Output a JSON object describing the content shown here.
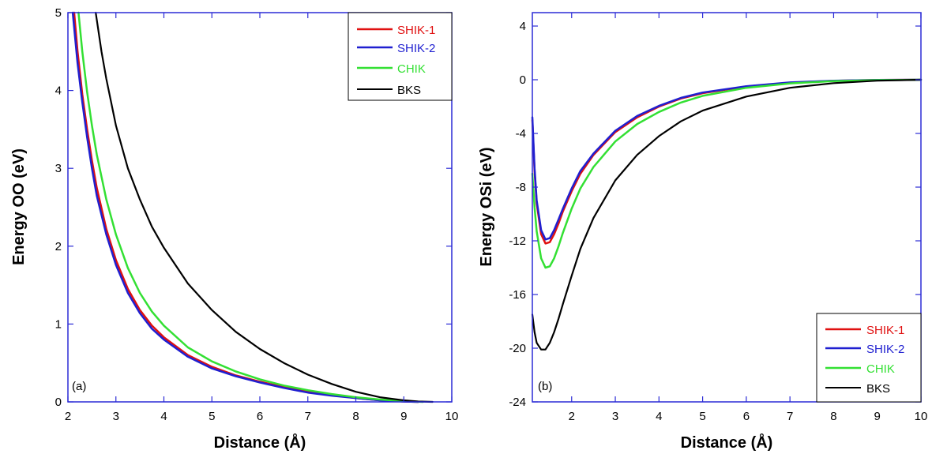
{
  "chart_data": [
    {
      "type": "line",
      "panel_label": "(a)",
      "xlabel": "Distance (Å)",
      "ylabel": "Energy OO (eV)",
      "xlim": [
        2,
        10
      ],
      "ylim": [
        0,
        5
      ],
      "xticks": [
        "2",
        "3",
        "4",
        "5",
        "6",
        "7",
        "8",
        "9",
        "10"
      ],
      "yticks": [
        "0",
        "1",
        "2",
        "3",
        "4",
        "5"
      ],
      "legend_position": "top-right",
      "legend": [
        "SHIK-1",
        "SHIK-2",
        "CHIK",
        "BKS"
      ],
      "series": [
        {
          "name": "SHIK-1",
          "color": "#e01010",
          "x": [
            2.13,
            2.2,
            2.3,
            2.4,
            2.5,
            2.6,
            2.8,
            3.0,
            3.25,
            3.5,
            3.75,
            4.0,
            4.5,
            5.0,
            5.5,
            6.0,
            6.5,
            7.0,
            7.5,
            8.0,
            8.5,
            9.0,
            9.3
          ],
          "y": [
            5.0,
            4.5,
            3.95,
            3.5,
            3.1,
            2.75,
            2.22,
            1.82,
            1.45,
            1.18,
            0.98,
            0.83,
            0.6,
            0.45,
            0.34,
            0.26,
            0.19,
            0.13,
            0.09,
            0.05,
            0.02,
            0.005,
            0.0
          ]
        },
        {
          "name": "SHIK-2",
          "color": "#1f1fd0",
          "x": [
            2.1,
            2.2,
            2.3,
            2.4,
            2.5,
            2.6,
            2.8,
            3.0,
            3.25,
            3.5,
            3.75,
            4.0,
            4.5,
            5.0,
            5.5,
            6.0,
            6.5,
            7.0,
            7.5,
            8.0,
            8.5,
            9.0,
            9.3
          ],
          "y": [
            5.0,
            4.35,
            3.85,
            3.4,
            3.0,
            2.65,
            2.15,
            1.76,
            1.4,
            1.14,
            0.94,
            0.8,
            0.58,
            0.43,
            0.33,
            0.25,
            0.18,
            0.12,
            0.08,
            0.05,
            0.02,
            0.005,
            0.0
          ]
        },
        {
          "name": "CHIK",
          "color": "#33e033",
          "x": [
            2.22,
            2.3,
            2.4,
            2.5,
            2.6,
            2.8,
            3.0,
            3.25,
            3.5,
            3.75,
            4.0,
            4.5,
            5.0,
            5.5,
            6.0,
            6.5,
            7.0,
            7.5,
            8.0,
            8.5,
            9.0,
            9.4
          ],
          "y": [
            5.0,
            4.5,
            3.98,
            3.55,
            3.18,
            2.6,
            2.15,
            1.72,
            1.4,
            1.16,
            0.98,
            0.7,
            0.52,
            0.39,
            0.29,
            0.21,
            0.15,
            0.1,
            0.06,
            0.03,
            0.01,
            0.0
          ]
        },
        {
          "name": "BKS",
          "color": "#000000",
          "x": [
            2.58,
            2.7,
            2.8,
            3.0,
            3.25,
            3.5,
            3.75,
            4.0,
            4.5,
            5.0,
            5.5,
            6.0,
            6.5,
            7.0,
            7.5,
            8.0,
            8.5,
            9.0,
            9.3,
            9.6
          ],
          "y": [
            5.0,
            4.5,
            4.15,
            3.55,
            3.0,
            2.6,
            2.25,
            1.98,
            1.52,
            1.18,
            0.9,
            0.68,
            0.5,
            0.35,
            0.23,
            0.13,
            0.06,
            0.02,
            0.005,
            0.0
          ]
        }
      ]
    },
    {
      "type": "line",
      "panel_label": "(b)",
      "xlabel": "Distance (Å)",
      "ylabel": "Energy OSi (eV)",
      "xlim": [
        1.1,
        10
      ],
      "ylim": [
        -24,
        5
      ],
      "xticks": [
        "2",
        "3",
        "4",
        "5",
        "6",
        "7",
        "8",
        "9",
        "10"
      ],
      "yticks": [
        "4",
        "0",
        "-4",
        "-8",
        "-12",
        "-16",
        "-20",
        "-24"
      ],
      "legend_position": "bottom-right",
      "legend": [
        "SHIK-1",
        "SHIK-2",
        "CHIK",
        "BKS"
      ],
      "series": [
        {
          "name": "SHIK-1",
          "color": "#e01010",
          "x": [
            1.1,
            1.15,
            1.2,
            1.3,
            1.4,
            1.5,
            1.6,
            1.7,
            1.8,
            2.0,
            2.2,
            2.5,
            3.0,
            3.5,
            4.0,
            4.5,
            5.0,
            6.0,
            7.0,
            8.0,
            9.0,
            10.0
          ],
          "y": [
            -3.0,
            -6.8,
            -9.2,
            -11.5,
            -12.2,
            -12.1,
            -11.5,
            -10.7,
            -9.8,
            -8.3,
            -7.0,
            -5.6,
            -3.9,
            -2.8,
            -2.0,
            -1.4,
            -1.0,
            -0.5,
            -0.22,
            -0.08,
            -0.02,
            0.0
          ]
        },
        {
          "name": "SHIK-2",
          "color": "#1f1fd0",
          "x": [
            1.1,
            1.15,
            1.2,
            1.3,
            1.4,
            1.5,
            1.6,
            1.7,
            1.8,
            2.0,
            2.2,
            2.5,
            3.0,
            3.5,
            4.0,
            4.5,
            5.0,
            6.0,
            7.0,
            8.0,
            9.0,
            10.0
          ],
          "y": [
            -2.8,
            -6.6,
            -9.0,
            -11.2,
            -11.9,
            -11.8,
            -11.2,
            -10.4,
            -9.6,
            -8.1,
            -6.8,
            -5.5,
            -3.8,
            -2.7,
            -1.95,
            -1.35,
            -0.95,
            -0.48,
            -0.2,
            -0.07,
            -0.02,
            0.0
          ]
        },
        {
          "name": "CHIK",
          "color": "#33e033",
          "x": [
            1.1,
            1.15,
            1.2,
            1.3,
            1.4,
            1.5,
            1.6,
            1.7,
            1.8,
            2.0,
            2.2,
            2.5,
            3.0,
            3.5,
            4.0,
            4.5,
            5.0,
            6.0,
            7.0,
            8.0,
            9.0,
            10.0
          ],
          "y": [
            -7.0,
            -9.5,
            -11.3,
            -13.3,
            -14.0,
            -13.9,
            -13.3,
            -12.4,
            -11.4,
            -9.6,
            -8.1,
            -6.5,
            -4.6,
            -3.3,
            -2.4,
            -1.7,
            -1.2,
            -0.6,
            -0.27,
            -0.1,
            -0.03,
            0.0
          ]
        },
        {
          "name": "BKS",
          "color": "#000000",
          "x": [
            1.1,
            1.15,
            1.2,
            1.3,
            1.4,
            1.5,
            1.6,
            1.7,
            1.8,
            2.0,
            2.2,
            2.5,
            3.0,
            3.5,
            4.0,
            4.5,
            5.0,
            6.0,
            7.0,
            8.0,
            9.0,
            10.0
          ],
          "y": [
            -17.5,
            -18.8,
            -19.6,
            -20.1,
            -20.1,
            -19.6,
            -18.8,
            -17.8,
            -16.7,
            -14.6,
            -12.6,
            -10.3,
            -7.5,
            -5.6,
            -4.2,
            -3.1,
            -2.3,
            -1.25,
            -0.6,
            -0.25,
            -0.07,
            0.0
          ]
        }
      ]
    }
  ]
}
